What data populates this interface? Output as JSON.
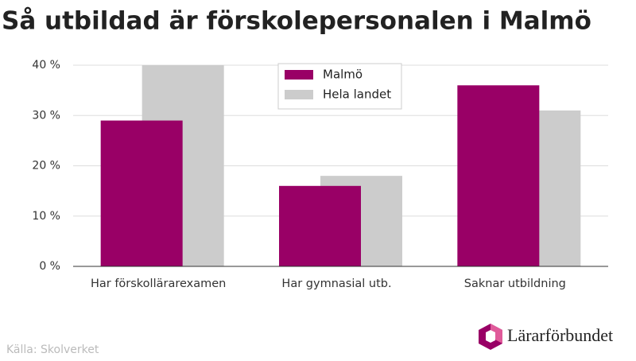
{
  "chart_data": {
    "type": "bar",
    "title": "Så utbildad är förskolepersonalen i Malmö",
    "categories": [
      "Har förskollärarexamen",
      "Har gymnasial utb.",
      "Saknar utbildning"
    ],
    "series": [
      {
        "name": "Malmö",
        "color": "#990066",
        "values": [
          29,
          16,
          36
        ]
      },
      {
        "name": "Hela landet",
        "color": "#cccccc",
        "values": [
          40,
          18,
          31
        ]
      }
    ],
    "ylim": [
      0,
      40
    ],
    "yticks": [
      {
        "value": 0,
        "label": "0 %"
      },
      {
        "value": 10,
        "label": "10 %"
      },
      {
        "value": 20,
        "label": "20 %"
      },
      {
        "value": 30,
        "label": "30 %"
      },
      {
        "value": 40,
        "label": "40 %"
      }
    ],
    "grid": true,
    "source": "Källa: Skolverket",
    "logo": "Lärarförbundet"
  }
}
